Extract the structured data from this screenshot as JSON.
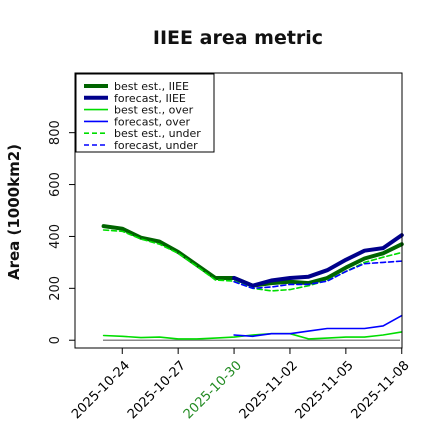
{
  "chart_data": {
    "type": "line",
    "title": "IIEE area metric",
    "xlabel": "",
    "ylabel": "Area (1000km2)",
    "ylim": [
      -30,
      1030
    ],
    "xlim": [
      "2025-10-22",
      "2025-11-08"
    ],
    "yticks": [
      0,
      200,
      400,
      600,
      800
    ],
    "xticks": [
      {
        "date": "2025-10-24",
        "label": "2025-10-24",
        "color": "#000000"
      },
      {
        "date": "2025-10-27",
        "label": "2025-10-27",
        "color": "#000000"
      },
      {
        "date": "2025-10-30",
        "label": "2025-10-30",
        "color": "#228b22"
      },
      {
        "date": "2025-11-02",
        "label": "2025-11-02",
        "color": "#000000"
      },
      {
        "date": "2025-11-05",
        "label": "2025-11-05",
        "color": "#000000"
      },
      {
        "date": "2025-11-08",
        "label": "2025-11-08",
        "color": "#000000"
      }
    ],
    "legend_position": "top-left",
    "grid": false,
    "series": [
      {
        "name": "best est., IIEE",
        "color": "#006400",
        "width": 4,
        "dash": "",
        "points": [
          [
            "2025-10-23",
            440
          ],
          [
            "2025-10-24",
            430
          ],
          [
            "2025-10-25",
            395
          ],
          [
            "2025-10-26",
            380
          ],
          [
            "2025-10-27",
            340
          ],
          [
            "2025-10-28",
            290
          ],
          [
            "2025-10-29",
            240
          ],
          [
            "2025-10-30",
            240
          ],
          [
            "2025-10-31",
            210
          ],
          [
            "2025-11-01",
            220
          ],
          [
            "2025-11-02",
            225
          ],
          [
            "2025-11-03",
            220
          ],
          [
            "2025-11-04",
            240
          ],
          [
            "2025-11-05",
            280
          ],
          [
            "2025-11-06",
            315
          ],
          [
            "2025-11-07",
            335
          ],
          [
            "2025-11-08",
            370
          ]
        ]
      },
      {
        "name": "forecast, IIEE",
        "color": "#00008b",
        "width": 4,
        "dash": "",
        "points": [
          [
            "2025-10-30",
            240
          ],
          [
            "2025-10-31",
            210
          ],
          [
            "2025-11-01",
            230
          ],
          [
            "2025-11-02",
            240
          ],
          [
            "2025-11-03",
            245
          ],
          [
            "2025-11-04",
            270
          ],
          [
            "2025-11-05",
            310
          ],
          [
            "2025-11-06",
            345
          ],
          [
            "2025-11-07",
            355
          ],
          [
            "2025-11-08",
            405
          ]
        ]
      },
      {
        "name": "best est., over",
        "color": "#00dd00",
        "width": 1.6,
        "dash": "",
        "points": [
          [
            "2025-10-23",
            18
          ],
          [
            "2025-10-24",
            15
          ],
          [
            "2025-10-25",
            10
          ],
          [
            "2025-10-26",
            12
          ],
          [
            "2025-10-27",
            5
          ],
          [
            "2025-10-28",
            5
          ],
          [
            "2025-10-29",
            8
          ],
          [
            "2025-10-30",
            12
          ],
          [
            "2025-10-31",
            20
          ],
          [
            "2025-11-01",
            25
          ],
          [
            "2025-11-02",
            25
          ],
          [
            "2025-11-03",
            5
          ],
          [
            "2025-11-04",
            8
          ],
          [
            "2025-11-05",
            12
          ],
          [
            "2025-11-06",
            12
          ],
          [
            "2025-11-07",
            20
          ],
          [
            "2025-11-08",
            32
          ]
        ]
      },
      {
        "name": "forecast, over",
        "color": "#0000ff",
        "width": 1.6,
        "dash": "",
        "points": [
          [
            "2025-10-30",
            20
          ],
          [
            "2025-10-31",
            15
          ],
          [
            "2025-11-01",
            25
          ],
          [
            "2025-11-02",
            25
          ],
          [
            "2025-11-03",
            35
          ],
          [
            "2025-11-04",
            45
          ],
          [
            "2025-11-05",
            45
          ],
          [
            "2025-11-06",
            45
          ],
          [
            "2025-11-07",
            55
          ],
          [
            "2025-11-08",
            95
          ]
        ]
      },
      {
        "name": "best est., under",
        "color": "#00dd00",
        "width": 1.6,
        "dash": "5,3",
        "points": [
          [
            "2025-10-23",
            425
          ],
          [
            "2025-10-24",
            420
          ],
          [
            "2025-10-25",
            390
          ],
          [
            "2025-10-26",
            370
          ],
          [
            "2025-10-27",
            335
          ],
          [
            "2025-10-28",
            285
          ],
          [
            "2025-10-29",
            232
          ],
          [
            "2025-10-30",
            228
          ],
          [
            "2025-10-31",
            200
          ],
          [
            "2025-11-01",
            190
          ],
          [
            "2025-11-02",
            195
          ],
          [
            "2025-11-03",
            210
          ],
          [
            "2025-11-04",
            230
          ],
          [
            "2025-11-05",
            265
          ],
          [
            "2025-11-06",
            300
          ],
          [
            "2025-11-07",
            320
          ],
          [
            "2025-11-08",
            338
          ]
        ]
      },
      {
        "name": "forecast, under",
        "color": "#0000ff",
        "width": 1.6,
        "dash": "5,3",
        "points": [
          [
            "2025-10-30",
            225
          ],
          [
            "2025-10-31",
            200
          ],
          [
            "2025-11-01",
            205
          ],
          [
            "2025-11-02",
            215
          ],
          [
            "2025-11-03",
            215
          ],
          [
            "2025-11-04",
            228
          ],
          [
            "2025-11-05",
            265
          ],
          [
            "2025-11-06",
            295
          ],
          [
            "2025-11-07",
            300
          ],
          [
            "2025-11-08",
            305
          ]
        ]
      }
    ],
    "baseline": {
      "value": 0,
      "color": "#888888"
    }
  }
}
